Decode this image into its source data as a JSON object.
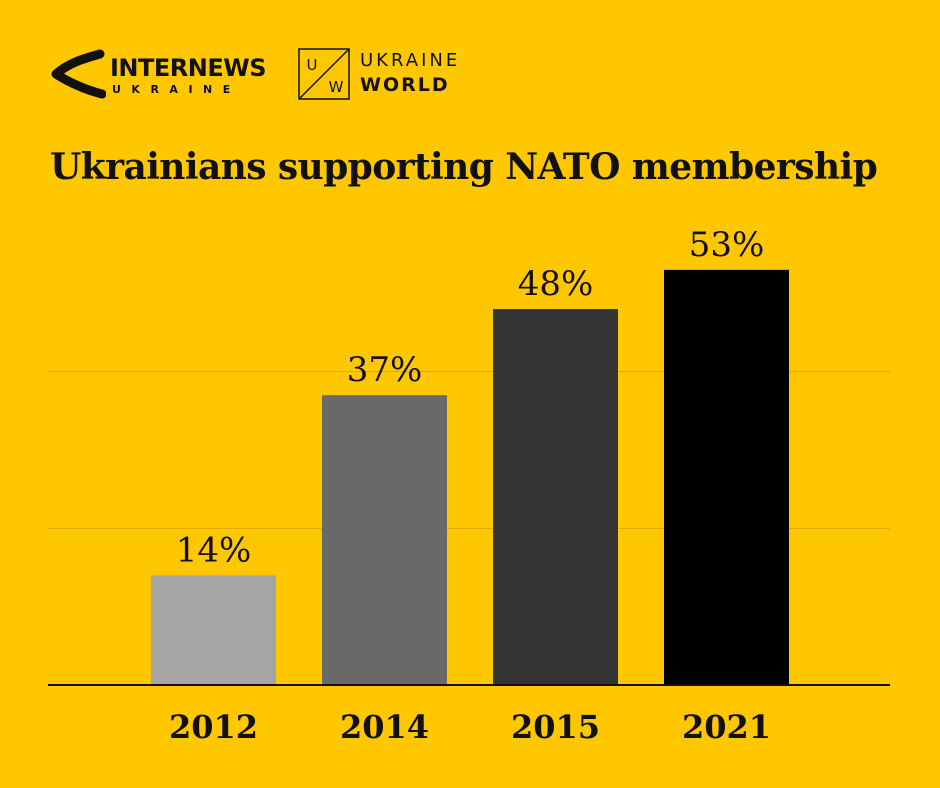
{
  "logos": {
    "internews_name": "INTERNEWS",
    "internews_sub": "UKRAINE",
    "uw_box_u": "U",
    "uw_box_w": "W",
    "uw_ukraine": "UKRAINE",
    "uw_world": "WORLD"
  },
  "chart_data": {
    "type": "bar",
    "title": "Ukrainians supporting NATO membership",
    "categories": [
      "2012",
      "2014",
      "2015",
      "2021"
    ],
    "values": [
      14,
      37,
      48,
      53
    ],
    "value_labels": [
      "14%",
      "37%",
      "48%",
      "53%"
    ],
    "xlabel": "",
    "ylabel": "",
    "ylim": [
      0,
      60
    ],
    "grid": true,
    "legend": "none",
    "colors": [
      "#A5A5A5",
      "#696969",
      "#343434",
      "#000000"
    ],
    "gridline_color": "#D9A900",
    "background": "#FFC700"
  }
}
